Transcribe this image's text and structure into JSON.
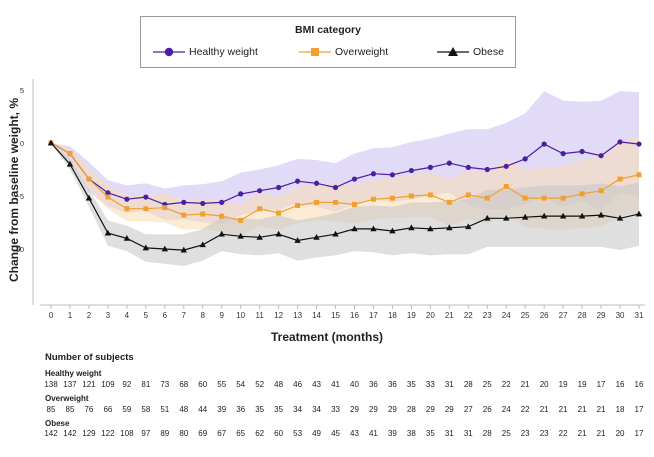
{
  "chart_data": {
    "type": "line",
    "legend": {
      "title": "BMI category",
      "entries": [
        "Healthy weight",
        "Overweight",
        "Obese"
      ]
    },
    "xlabel": "Treatment (months)",
    "ylabel": "Change from baseline weight, %",
    "x": [
      0,
      1,
      2,
      3,
      4,
      5,
      6,
      7,
      8,
      9,
      10,
      11,
      12,
      13,
      14,
      15,
      16,
      17,
      18,
      19,
      20,
      21,
      22,
      23,
      24,
      25,
      26,
      27,
      28,
      29,
      30,
      31
    ],
    "x_ticks": [
      "0",
      "1",
      "2",
      "3",
      "4",
      "5",
      "6",
      "7",
      "8",
      "9",
      "10",
      "11",
      "12",
      "13",
      "14",
      "15",
      "16",
      "17",
      "18",
      "19",
      "20",
      "21",
      "22",
      "23",
      "24",
      "25",
      "26",
      "27",
      "28",
      "29",
      "30",
      "31"
    ],
    "y_ticks": [
      5,
      0,
      -5,
      -10
    ],
    "ylim": [
      -15,
      6
    ],
    "grid": false,
    "series": [
      {
        "name": "Healthy weight",
        "color": "#4b1fa0",
        "band_color": "#c9bdf0",
        "marker": "circle",
        "values": [
          0,
          -1.0,
          -3.4,
          -4.7,
          -5.3,
          -5.1,
          -5.8,
          -5.6,
          -5.7,
          -5.6,
          -4.8,
          -4.5,
          -4.2,
          -3.6,
          -3.8,
          -4.2,
          -3.4,
          -2.9,
          -3.0,
          -2.6,
          -2.3,
          -1.9,
          -2.3,
          -2.5,
          -2.2,
          -1.5,
          -0.1,
          -1.0,
          -0.8,
          -1.2,
          0.1,
          -0.1
        ],
        "upper": [
          0,
          -0.3,
          -1.8,
          -3.5,
          -4.0,
          -3.8,
          -4.3,
          -4.0,
          -3.9,
          -3.6,
          -2.8,
          -2.5,
          -2.1,
          -1.5,
          -1.6,
          -1.9,
          -1.0,
          -0.5,
          -0.4,
          0.1,
          0.4,
          0.9,
          1.3,
          1.3,
          1.9,
          2.8,
          4.9,
          4.0,
          3.9,
          4.0,
          4.9,
          4.8
        ],
        "lower": [
          0,
          -1.8,
          -4.6,
          -6.0,
          -6.6,
          -6.4,
          -7.3,
          -7.2,
          -7.5,
          -7.6,
          -6.8,
          -6.5,
          -6.3,
          -5.7,
          -6.0,
          -6.5,
          -5.8,
          -5.3,
          -5.6,
          -5.3,
          -5.0,
          -4.7,
          -5.9,
          -6.3,
          -6.3,
          -5.8,
          -5.1,
          -6.0,
          -5.5,
          -6.4,
          -4.7,
          -5.0
        ]
      },
      {
        "name": "Overweight",
        "color": "#f0a030",
        "band_color": "#f9ddb5",
        "marker": "square",
        "values": [
          0,
          -1.0,
          -3.4,
          -5.1,
          -6.2,
          -6.2,
          -6.1,
          -6.8,
          -6.7,
          -6.9,
          -7.3,
          -6.2,
          -6.6,
          -5.9,
          -5.6,
          -5.6,
          -5.8,
          -5.3,
          -5.2,
          -5.0,
          -4.9,
          -5.6,
          -4.9,
          -5.2,
          -4.1,
          -5.2,
          -5.2,
          -5.2,
          -4.8,
          -4.5,
          -3.4,
          -3.0
        ],
        "upper": [
          0,
          -0.5,
          -2.4,
          -4.0,
          -5.0,
          -5.0,
          -4.7,
          -5.4,
          -5.3,
          -5.4,
          -5.8,
          -4.6,
          -5.0,
          -4.2,
          -3.9,
          -3.8,
          -4.0,
          -3.4,
          -3.3,
          -3.0,
          -2.8,
          -3.4,
          -2.6,
          -2.8,
          -1.5,
          -2.5,
          -2.3,
          -2.2,
          -1.6,
          -1.1,
          0.1,
          0.6
        ],
        "lower": [
          0,
          -1.5,
          -4.4,
          -6.2,
          -7.4,
          -7.4,
          -7.5,
          -8.2,
          -8.1,
          -8.4,
          -8.8,
          -7.8,
          -8.2,
          -7.6,
          -7.3,
          -7.4,
          -7.6,
          -7.2,
          -7.1,
          -7.0,
          -7.0,
          -7.8,
          -7.2,
          -7.6,
          -6.7,
          -7.9,
          -8.1,
          -8.2,
          -8.0,
          -7.9,
          -6.9,
          -6.6
        ]
      },
      {
        "name": "Obese",
        "color": "#111111",
        "band_color": "#c4c4c4",
        "marker": "triangle",
        "values": [
          0,
          -2.0,
          -5.2,
          -8.5,
          -9.0,
          -9.9,
          -10.0,
          -10.1,
          -9.6,
          -8.6,
          -8.8,
          -8.9,
          -8.6,
          -9.2,
          -8.9,
          -8.6,
          -8.1,
          -8.1,
          -8.3,
          -8.0,
          -8.1,
          -8.0,
          -7.9,
          -7.1,
          -7.1,
          -7.0,
          -6.9,
          -6.9,
          -6.9,
          -6.8,
          -7.1,
          -6.7
        ],
        "upper": [
          0,
          -1.5,
          -4.4,
          -7.3,
          -7.8,
          -8.6,
          -8.6,
          -8.6,
          -8.1,
          -7.0,
          -7.1,
          -7.2,
          -6.8,
          -7.3,
          -7.0,
          -6.6,
          -6.0,
          -5.9,
          -6.0,
          -5.6,
          -5.6,
          -5.5,
          -5.3,
          -4.4,
          -4.4,
          -4.2,
          -4.0,
          -4.0,
          -4.0,
          -3.8,
          -4.1,
          -3.7
        ],
        "lower": [
          0,
          -2.5,
          -6.0,
          -9.7,
          -10.2,
          -11.2,
          -11.4,
          -11.6,
          -11.1,
          -10.2,
          -10.5,
          -10.6,
          -10.4,
          -11.1,
          -10.8,
          -10.6,
          -10.2,
          -10.3,
          -10.6,
          -10.4,
          -10.6,
          -10.5,
          -10.5,
          -9.8,
          -9.8,
          -9.8,
          -9.8,
          -9.8,
          -9.8,
          -9.8,
          -10.1,
          -9.7
        ]
      }
    ],
    "subjects": {
      "title": "Number of subjects",
      "groups": [
        {
          "label": "Healthy weight",
          "counts": [
            "138",
            "137",
            "121",
            "109",
            "92",
            "81",
            "73",
            "68",
            "60",
            "55",
            "54",
            "52",
            "48",
            "46",
            "43",
            "41",
            "40",
            "36",
            "36",
            "35",
            "33",
            "31",
            "28",
            "25",
            "22",
            "21",
            "20",
            "19",
            "19",
            "17",
            "16",
            "16"
          ]
        },
        {
          "label": "Overweight",
          "counts": [
            "85",
            "85",
            "76",
            "66",
            "59",
            "58",
            "51",
            "48",
            "44",
            "39",
            "36",
            "35",
            "35",
            "34",
            "34",
            "33",
            "29",
            "29",
            "29",
            "28",
            "29",
            "29",
            "27",
            "26",
            "24",
            "22",
            "21",
            "21",
            "21",
            "21",
            "18",
            "17"
          ]
        },
        {
          "label": "Obese",
          "counts": [
            "142",
            "142",
            "129",
            "122",
            "108",
            "97",
            "89",
            "80",
            "69",
            "67",
            "65",
            "62",
            "60",
            "53",
            "49",
            "45",
            "43",
            "41",
            "39",
            "38",
            "35",
            "31",
            "31",
            "28",
            "25",
            "23",
            "23",
            "22",
            "21",
            "21",
            "20",
            "17"
          ]
        }
      ]
    }
  }
}
